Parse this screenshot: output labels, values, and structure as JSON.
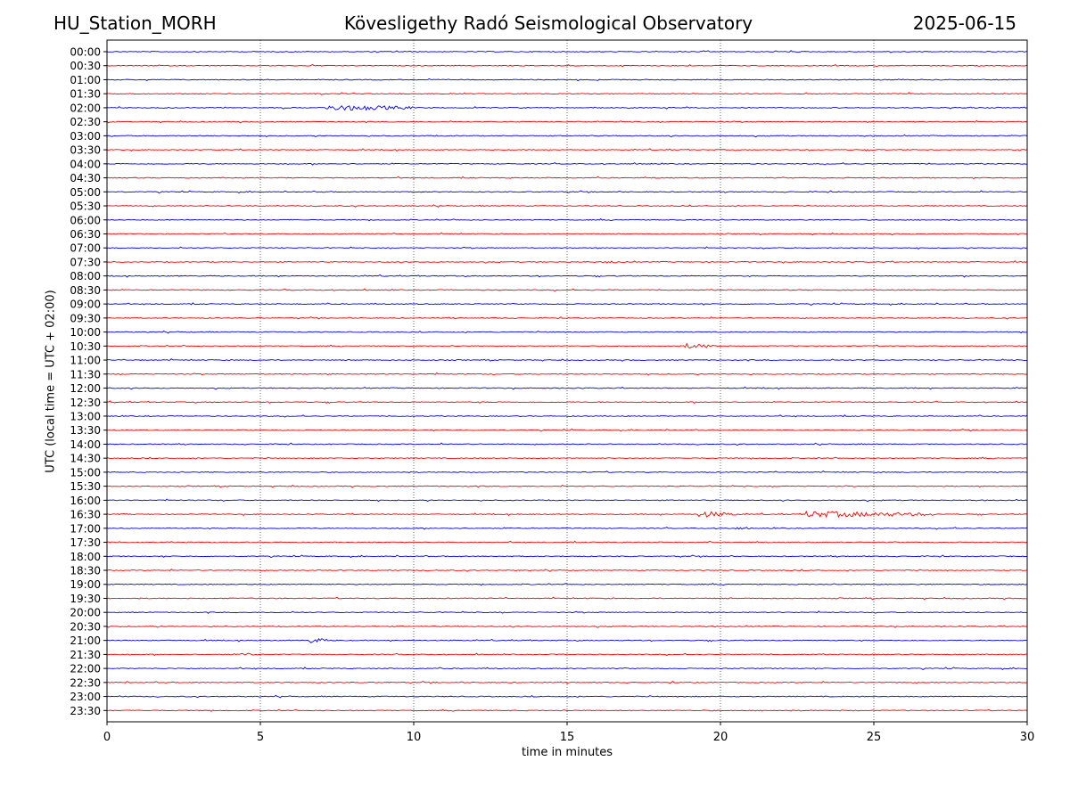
{
  "header": {
    "station": "HU_Station_MORH",
    "title": "Kövesligethy Radó Seismological Observatory",
    "date": "2025-06-15"
  },
  "chart_data": {
    "type": "line",
    "title": "Kövesligethy Radó Seismological Observatory",
    "xlabel": "time in minutes",
    "ylabel": "UTC (local time = UTC + 02:00)",
    "xlim": [
      0,
      30
    ],
    "x_ticks": [
      0,
      5,
      10,
      15,
      20,
      25,
      30
    ],
    "grid": "vertical dotted at x ticks",
    "row_labels": [
      "00:00",
      "00:30",
      "01:00",
      "01:30",
      "02:00",
      "02:30",
      "03:00",
      "03:30",
      "04:00",
      "04:30",
      "05:00",
      "05:30",
      "06:00",
      "06:30",
      "07:00",
      "07:30",
      "08:00",
      "08:30",
      "09:00",
      "09:30",
      "10:00",
      "10:30",
      "11:00",
      "11:30",
      "12:00",
      "12:30",
      "13:00",
      "13:30",
      "14:00",
      "14:30",
      "15:00",
      "15:30",
      "16:00",
      "16:30",
      "17:00",
      "17:30",
      "18:00",
      "18:30",
      "19:00",
      "19:30",
      "20:00",
      "20:30",
      "21:00",
      "21:30",
      "22:00",
      "22:30",
      "23:00",
      "23:30"
    ],
    "colors": [
      "#0000ff",
      "#ff0000"
    ],
    "events": [
      {
        "row": "02:00",
        "start_min": 7.1,
        "end_min": 10.0,
        "amplitude": 3.5
      },
      {
        "row": "07:30",
        "start_min": 16.3,
        "end_min": 17.0,
        "amplitude": 1.4
      },
      {
        "row": "10:30",
        "start_min": 18.8,
        "end_min": 19.9,
        "amplitude": 3.0
      },
      {
        "row": "16:30",
        "start_min": 19.3,
        "end_min": 20.5,
        "amplitude": 3.5
      },
      {
        "row": "16:30",
        "start_min": 22.8,
        "end_min": 27.0,
        "amplitude": 3.5
      },
      {
        "row": "17:00",
        "start_min": 20.5,
        "end_min": 21.0,
        "amplitude": 1.5
      },
      {
        "row": "21:00",
        "start_min": 6.6,
        "end_min": 7.3,
        "amplitude": 3.0
      },
      {
        "row": "21:30",
        "start_min": 4.4,
        "end_min": 4.9,
        "amplitude": 2.0
      }
    ]
  }
}
